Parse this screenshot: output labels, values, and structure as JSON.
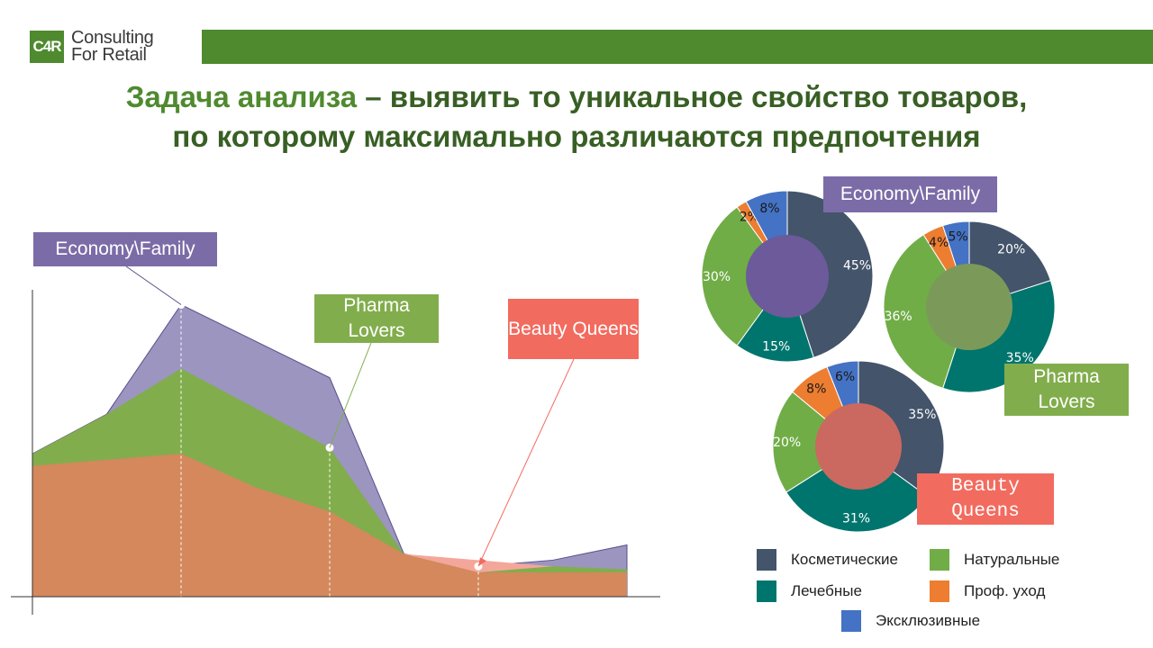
{
  "logo": {
    "mark": "C4R",
    "line1": "Consulting",
    "line2": "For Retail"
  },
  "title": {
    "accent": "Задача анализа",
    "rest": " – выявить то уникальное свойство товаров,",
    "line2": "по которому максимально различаются предпочтения"
  },
  "colors": {
    "brand_green": "#4f8a2f",
    "title_green": "#385f24",
    "economy": "#7b6ca7",
    "pharma": "#82ad4c",
    "beauty": "#f26b5f",
    "area_orange": "#d4885c",
    "cosmetic": "#44546a",
    "natural": "#70ad47",
    "medical": "#00756d",
    "prof": "#ed7d31",
    "exclusive": "#4472c4"
  },
  "labels": {
    "economy": "Economy\\Family",
    "pharma": "Pharma Lovers",
    "beauty": "Beauty Queens",
    "economy_donut": "Economy\\Family",
    "pharma_donut": "Pharma Lovers",
    "beauty_donut": "Beauty Queens"
  },
  "legend": [
    {
      "label": "Косметические",
      "color": "#44546a"
    },
    {
      "label": "Натуральные",
      "color": "#70ad47"
    },
    {
      "label": "Лечебные",
      "color": "#00756d"
    },
    {
      "label": "Проф. уход",
      "color": "#ed7d31"
    },
    {
      "label": "Эксклюзивные",
      "color": "#4472c4"
    }
  ],
  "chart_data": [
    {
      "type": "area",
      "x": [
        0,
        1,
        2,
        3,
        4,
        5,
        6,
        7,
        8
      ],
      "ylim": [
        0,
        100
      ],
      "series": [
        {
          "name": "Economy\\Family",
          "color": "#9b95c0",
          "values": [
            47,
            60,
            96,
            84,
            72,
            14,
            10,
            12,
            17
          ]
        },
        {
          "name": "Pharma Lovers",
          "color": "#82ad4c",
          "values": [
            47,
            60,
            75,
            62,
            49,
            14,
            10,
            10,
            9
          ]
        },
        {
          "name": "Beauty Queens",
          "color": "#d4885c",
          "values": [
            43,
            45,
            47,
            36,
            28,
            14,
            8,
            8,
            8
          ]
        }
      ],
      "markers": [
        {
          "label": "Economy\\Family",
          "x": 2,
          "y": 96
        },
        {
          "label": "Pharma Lovers",
          "x": 4,
          "y": 49
        },
        {
          "label": "Beauty Queens",
          "x": 6,
          "y": 10
        }
      ]
    },
    {
      "type": "pie",
      "name": "Economy\\Family",
      "categories": [
        "Косметические",
        "Лечебные",
        "Натуральные",
        "Проф. уход",
        "Эксклюзивные"
      ],
      "values": [
        45,
        15,
        30,
        2,
        8
      ],
      "labels": [
        "45%",
        "15%",
        "30%",
        "2%",
        "8%"
      ]
    },
    {
      "type": "pie",
      "name": "Pharma Lovers",
      "categories": [
        "Косметические",
        "Лечебные",
        "Натуральные",
        "Проф. уход",
        "Эксклюзивные"
      ],
      "values": [
        20,
        35,
        36,
        4,
        5
      ],
      "labels": [
        "20%",
        "35%",
        "36%",
        "4%",
        "5%"
      ]
    },
    {
      "type": "pie",
      "name": "Beauty Queens",
      "categories": [
        "Косметические",
        "Лечебные",
        "Натуральные",
        "Проф. уход",
        "Эксклюзивные"
      ],
      "values": [
        35,
        31,
        20,
        8,
        6
      ],
      "labels": [
        "35%",
        "31%",
        "20%",
        "8%",
        "6%"
      ]
    }
  ]
}
